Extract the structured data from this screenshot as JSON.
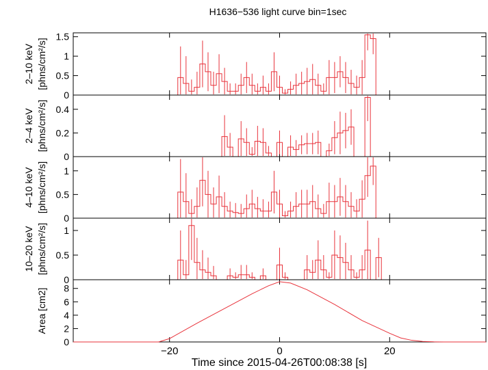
{
  "title": "H1636−536 light curve bin=1sec",
  "colors": {
    "data": "#e8323a",
    "axis": "#000000",
    "background": "#ffffff"
  },
  "chart_data": [
    {
      "type": "line",
      "panel": "2-10 keV",
      "ylabel_band": "2–10 keV",
      "ylabel_unit": "[phns/cm²/s]",
      "x": [
        -18,
        -17,
        -16,
        -15,
        -14,
        -13,
        -12,
        -11,
        -10,
        -9,
        -8,
        -7,
        -6,
        -5,
        -4,
        -3,
        -2,
        -1,
        0,
        1,
        2,
        3,
        4,
        5,
        6,
        7,
        8,
        9,
        10,
        11,
        12,
        13,
        14,
        15,
        16,
        17,
        18
      ],
      "values": [
        0.45,
        0.3,
        0.1,
        0.2,
        0.8,
        0.6,
        0.25,
        0.55,
        0.35,
        0.1,
        0.1,
        0.25,
        0.45,
        0.25,
        0.1,
        0.2,
        0.1,
        0.6,
        0.2,
        0.05,
        0.15,
        0.25,
        0.3,
        0.35,
        0.4,
        0.25,
        0.1,
        0.45,
        0.45,
        0.6,
        0.45,
        0.3,
        0.2,
        0.45,
        1.55,
        1.45,
        0
      ],
      "errors": [
        0.8,
        0.7,
        0.3,
        0.4,
        0.6,
        0.5,
        0.35,
        0.5,
        0.35,
        0.2,
        0.2,
        0.3,
        0.4,
        0.3,
        0.2,
        0.3,
        0.2,
        0.5,
        0.3,
        0.1,
        0.2,
        0.3,
        0.3,
        0.35,
        0.4,
        0.3,
        0.2,
        0.45,
        0.4,
        0.4,
        0.4,
        0.35,
        0.3,
        0.45,
        0.4,
        0.4,
        0
      ],
      "ylim": [
        0,
        1.6
      ],
      "yticks": [
        0,
        0.5,
        1,
        1.5
      ],
      "ytick_labels": [
        "0",
        "0.5",
        "1",
        "1.5"
      ]
    },
    {
      "type": "line",
      "panel": "2-4 keV",
      "ylabel_band": "2–4 keV",
      "ylabel_unit": "[phns/cm²/s]",
      "x": [
        -10,
        -9,
        -8,
        -7,
        -6,
        -5,
        -4,
        -3,
        -2,
        -1,
        0,
        1,
        2,
        3,
        4,
        5,
        6,
        7,
        8,
        9,
        10,
        11,
        12,
        13,
        14,
        15,
        16,
        17
      ],
      "values": [
        0.17,
        0.08,
        0,
        0.15,
        0.12,
        0.02,
        0.13,
        0.12,
        0.03,
        0,
        0.12,
        0,
        0.08,
        0.06,
        0.1,
        0.11,
        0.11,
        0.12,
        0,
        0.05,
        0.16,
        0.2,
        0.22,
        0.25,
        0,
        0,
        0.5,
        0
      ],
      "errors": [
        0.18,
        0.12,
        0,
        0.15,
        0.12,
        0.06,
        0.13,
        0.12,
        0.06,
        0,
        0.1,
        0,
        0.1,
        0.08,
        0.08,
        0.09,
        0.09,
        0.1,
        0,
        0.06,
        0.14,
        0.18,
        0.15,
        0.15,
        0,
        0,
        0.2,
        0
      ],
      "ylim": [
        0,
        0.52
      ],
      "yticks": [
        0,
        0.2,
        0.4
      ],
      "ytick_labels": [
        "0",
        "0.2",
        "0.4"
      ]
    },
    {
      "type": "line",
      "panel": "4-10 keV",
      "ylabel_band": "4–10 keV",
      "ylabel_unit": "[phns/cm²/s]",
      "x": [
        -18,
        -17,
        -16,
        -15,
        -14,
        -13,
        -12,
        -11,
        -10,
        -9,
        -8,
        -7,
        -6,
        -5,
        -4,
        -3,
        -2,
        -1,
        0,
        1,
        2,
        3,
        4,
        5,
        6,
        7,
        8,
        9,
        10,
        11,
        12,
        13,
        14,
        15,
        16,
        17,
        18
      ],
      "values": [
        0.55,
        0.35,
        0.1,
        0.25,
        0.8,
        0.5,
        0.3,
        0.45,
        0.25,
        0.15,
        0.12,
        0.1,
        0.2,
        0.3,
        0.2,
        0.15,
        0.15,
        0.55,
        0.3,
        0.05,
        0.15,
        0.25,
        0.3,
        0.3,
        0.35,
        0.2,
        0.1,
        0.35,
        0.35,
        0.45,
        0.35,
        0.25,
        0.15,
        0.4,
        0.9,
        1.1,
        0
      ],
      "errors": [
        0.7,
        0.6,
        0.3,
        0.4,
        0.55,
        0.5,
        0.35,
        0.45,
        0.3,
        0.2,
        0.2,
        0.2,
        0.3,
        0.3,
        0.25,
        0.25,
        0.2,
        0.45,
        0.3,
        0.1,
        0.2,
        0.3,
        0.3,
        0.3,
        0.35,
        0.3,
        0.2,
        0.4,
        0.35,
        0.4,
        0.35,
        0.3,
        0.25,
        0.4,
        0.45,
        0.4,
        0
      ],
      "ylim": [
        0,
        1.3
      ],
      "yticks": [
        0,
        0.5,
        1
      ],
      "ytick_labels": [
        "0",
        "0.5",
        "1"
      ]
    },
    {
      "type": "line",
      "panel": "10-20 keV",
      "ylabel_band": "10–20 keV",
      "ylabel_unit": "[phns/cm²/s]",
      "x": [
        -18,
        -17,
        -16,
        -15,
        -14,
        -13,
        -12,
        -11,
        -10,
        -9,
        -8,
        -7,
        -6,
        -5,
        -4,
        -3,
        -2,
        -1,
        0,
        1,
        2,
        3,
        4,
        5,
        6,
        7,
        8,
        9,
        10,
        11,
        12,
        13,
        14,
        15,
        16,
        17,
        18
      ],
      "values": [
        0.4,
        0.1,
        1.1,
        0.35,
        0.2,
        0.15,
        0.08,
        0,
        0,
        0.08,
        0.05,
        0.1,
        0.1,
        0.05,
        0,
        0.08,
        0,
        0,
        0.3,
        0.05,
        0,
        0,
        0,
        0.2,
        0.15,
        0.4,
        0.2,
        0.05,
        0.5,
        0.45,
        0.35,
        0.2,
        0.05,
        0.2,
        0.6,
        0,
        0.45
      ],
      "errors": [
        0.6,
        0.3,
        0.7,
        0.5,
        0.4,
        0.3,
        0.2,
        0,
        0,
        0.15,
        0.1,
        0.2,
        0.2,
        0.1,
        0,
        0.15,
        0,
        0,
        0.35,
        0.1,
        0,
        0,
        0,
        0.3,
        0.25,
        0.4,
        0.3,
        0.1,
        0.5,
        0.45,
        0.4,
        0.3,
        0.1,
        0.3,
        0.6,
        0,
        0.4
      ],
      "ylim": [
        0,
        1.25
      ],
      "yticks": [
        0,
        0.5,
        1
      ],
      "ytick_labels": [
        "0",
        "0.5",
        "1"
      ]
    },
    {
      "type": "line",
      "panel": "Area",
      "ylabel": "Area [cm2]",
      "x": [
        -37.5,
        -22,
        -20,
        -15,
        -10,
        -5,
        -2,
        0,
        2,
        5,
        10,
        15,
        20,
        22,
        24,
        26,
        28,
        30,
        37.5
      ],
      "values": [
        0,
        0,
        0.5,
        2.8,
        5.0,
        7.2,
        8.4,
        9.0,
        8.8,
        7.8,
        5.6,
        3.2,
        1.3,
        0.6,
        0.25,
        0.08,
        0.02,
        0,
        0
      ],
      "ylim": [
        0,
        9.3
      ],
      "yticks": [
        0,
        2,
        4,
        6,
        8
      ],
      "ytick_labels": [
        "0",
        "2",
        "4",
        "6",
        "8"
      ]
    }
  ],
  "xaxis": {
    "label": "Time since 2015-04-26T00:08:38 [s]",
    "xlim": [
      -37.5,
      37.5
    ],
    "ticks": [
      -20,
      0,
      20
    ],
    "tick_labels": [
      "−20",
      "0",
      "20"
    ]
  }
}
